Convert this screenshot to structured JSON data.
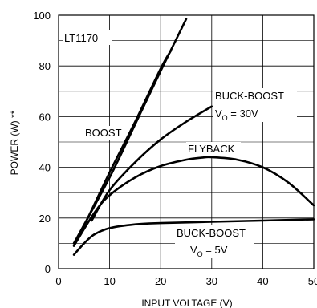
{
  "chart_data": {
    "type": "line",
    "xlabel": "INPUT VOLTAGE (V)",
    "ylabel": "POWER (W) **",
    "xlim": [
      0,
      50
    ],
    "ylim": [
      0,
      100
    ],
    "x_ticks": [
      "0",
      "10",
      "20",
      "30",
      "40",
      "50"
    ],
    "y_ticks": [
      "0",
      "20",
      "40",
      "60",
      "80",
      "100"
    ],
    "grid": true,
    "series": [
      {
        "name": "LT1170",
        "x": [
          3,
          10,
          15,
          20,
          25
        ],
        "y": [
          10,
          36,
          57,
          78,
          98.5
        ]
      },
      {
        "name": "BOOST",
        "x": [
          3,
          5,
          10,
          15,
          20,
          22
        ],
        "y": [
          10,
          17,
          38,
          58,
          79,
          86
        ]
      },
      {
        "name": "BUCK-BOOST V0 = 30V",
        "x": [
          6.5,
          10,
          15,
          20,
          25,
          30
        ],
        "y": [
          19,
          31,
          42,
          51,
          58,
          64
        ]
      },
      {
        "name": "FLYBACK",
        "x": [
          3,
          7,
          10,
          15,
          20,
          25,
          28,
          30,
          35,
          40,
          45,
          50
        ],
        "y": [
          9,
          22,
          29,
          36,
          40.5,
          43,
          43.8,
          44,
          43,
          40,
          34,
          25
        ]
      },
      {
        "name": "BUCK-BOOST V0 = 5V",
        "x": [
          3,
          5,
          7,
          10,
          15,
          20,
          30,
          40,
          50
        ],
        "y": [
          5.5,
          10,
          13.5,
          16,
          17.5,
          18,
          18.5,
          19,
          19.5
        ]
      }
    ],
    "annotations": {
      "lt1170": "LT1170",
      "boost": "BOOST",
      "flyback": "FLYBACK",
      "bb30_line1": "BUCK-BOOST",
      "bb30_line2_prefix": "V",
      "bb30_line2_sub": "O",
      "bb30_line2_suffix": " = 30V",
      "bb5_line1": "BUCK-BOOST",
      "bb5_line2_prefix": "V",
      "bb5_line2_sub": "O",
      "bb5_line2_suffix": " = 5V"
    }
  }
}
